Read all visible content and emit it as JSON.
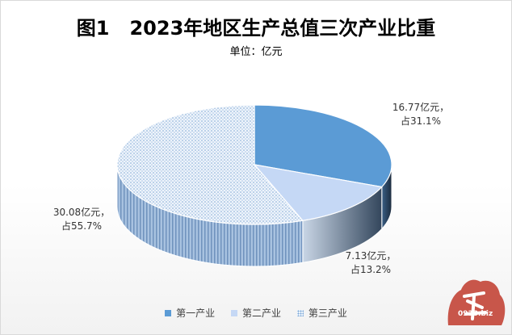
{
  "chart_data": {
    "type": "pie",
    "title": "图1   2023年地区生产总值三次产业比重",
    "subtitle": "单位：亿元",
    "categories": [
      "第一产业",
      "第二产业",
      "第三产业"
    ],
    "values": [
      16.77,
      7.13,
      30.08
    ],
    "data_labels": [
      [
        "16.77亿元，",
        "占31.1%"
      ],
      [
        "7.13亿元，",
        "占13.2%"
      ],
      [
        "30.08亿元，",
        "占55.7%"
      ]
    ],
    "legend_position": "bottom",
    "colors": [
      "#5b9bd5",
      "#c5d8f5",
      "#dce8f6"
    ]
  },
  "watermark": {
    "text": "0933.biz"
  }
}
